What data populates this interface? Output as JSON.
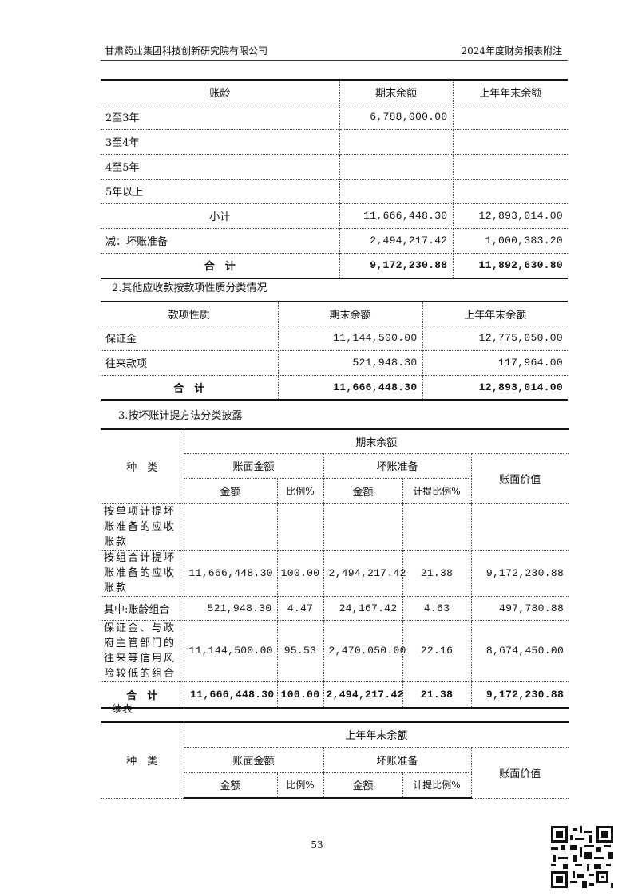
{
  "header": {
    "left": "甘肃药业集团科技创新研究院有限公司",
    "right": "2024年度财务报表附注"
  },
  "table1": {
    "headers": [
      "账龄",
      "期末余额",
      "上年年末余额"
    ],
    "rows": [
      [
        "2至3年",
        "6,788,000.00",
        ""
      ],
      [
        "3至4年",
        "",
        ""
      ],
      [
        "4至5年",
        "",
        ""
      ],
      [
        "5年以上",
        "",
        ""
      ],
      [
        "小计",
        "11,666,448.30",
        "12,893,014.00"
      ],
      [
        "减：坏账准备",
        "2,494,217.42",
        "1,000,383.20"
      ],
      [
        "合　计",
        "9,172,230.88",
        "11,892,630.80"
      ]
    ]
  },
  "caption2": "2.其他应收款按款项性质分类情况",
  "table2": {
    "headers": [
      "款项性质",
      "期末余额",
      "上年年末余额"
    ],
    "rows": [
      [
        "保证金",
        "11,144,500.00",
        "12,775,050.00"
      ],
      [
        "往来款项",
        "521,948.30",
        "117,964.00"
      ],
      [
        "合　计",
        "11,666,448.30",
        "12,893,014.00"
      ]
    ]
  },
  "caption3": "3.按坏账计提方法分类披露",
  "table3": {
    "type_header": "种　类",
    "period": "期末余额",
    "book_amount": "账面金额",
    "bad_debt": "坏账准备",
    "book_value": "账面价值",
    "amount": "金额",
    "ratio": "比例%",
    "provision_ratio": "计提比例%",
    "rows": [
      [
        "按单项计提坏账准备的应收账款",
        "",
        "",
        "",
        "",
        ""
      ],
      [
        "按组合计提坏账准备的应收账款",
        "11,666,448.30",
        "100.00",
        "2,494,217.42",
        "21.38",
        "9,172,230.88"
      ],
      [
        "其中:账龄组合",
        "521,948.30",
        "4.47",
        "24,167.42",
        "4.63",
        "497,780.88"
      ],
      [
        "保证金、与政府主管部门的往来等信用风险较低的组合",
        "11,144,500.00",
        "95.53",
        "2,470,050.00",
        "22.16",
        "8,674,450.00"
      ],
      [
        "合　计",
        "11,666,448.30",
        "100.00",
        "2,494,217.42",
        "21.38",
        "9,172,230.88"
      ]
    ]
  },
  "caption4": "续表",
  "table4": {
    "type_header": "种　类",
    "period": "上年年末余额",
    "book_amount": "账面金额",
    "bad_debt": "坏账准备",
    "book_value": "账面价值",
    "amount": "金额",
    "ratio": "比例%",
    "provision_ratio": "计提比例%"
  },
  "page_number": "53",
  "qr_icon": "qr-code-icon"
}
